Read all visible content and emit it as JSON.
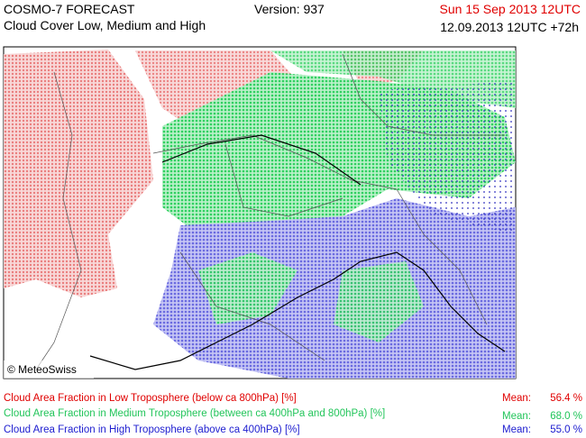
{
  "header": {
    "title": "COSMO-7 FORECAST",
    "subtitle": "Cloud Cover Low, Medium and High",
    "version": "Version: 937",
    "valid_time": "Sun 15 Sep 2013 12UTC",
    "run_time": "12.09.2013 12UTC +72h"
  },
  "map": {
    "copyright": "© MeteoSwiss"
  },
  "legend": [
    {
      "label": "Cloud Area Fraction in Low Troposphere (below ca 800hPa) [%]",
      "mean_label": "Mean:",
      "mean": "56.4 %"
    },
    {
      "label": "Cloud Area Fraction in Medium Troposphere (between ca 400hPa and 800hPa) [%]",
      "mean_label": "Mean:",
      "mean": "68.0 %"
    },
    {
      "label": "Cloud Area Fraction in High Troposphere (above ca 400hPa) [%]",
      "mean_label": "Mean:",
      "mean": "55.0 %"
    }
  ]
}
